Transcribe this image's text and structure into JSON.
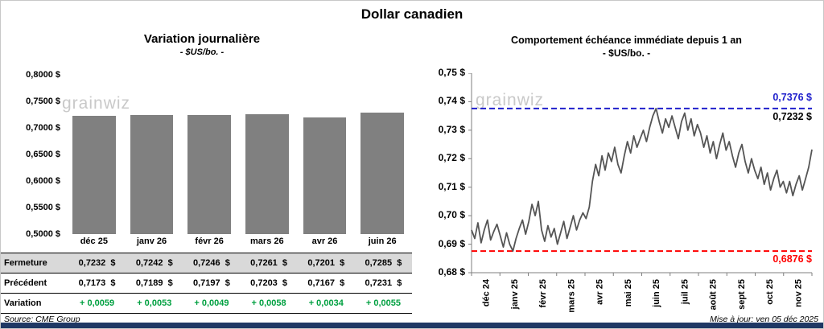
{
  "page_title": "Dollar canadien",
  "watermark": "grainwiz",
  "footer": {
    "source": "Source: CME Group",
    "updated": "Mise à jour: ven 05 déc 2025"
  },
  "colors": {
    "bar": "#808080",
    "line": "#555555",
    "resistance_blue": "#2020cc",
    "support_red": "#ff0000",
    "variation_green": "#00a040",
    "table_header_bg": "#d9d9d9",
    "footer_bar": "#1f3864",
    "axis": "#7f7f7f"
  },
  "chart_data": [
    {
      "type": "bar",
      "title": "Variation journalière",
      "subtitle": "- $US/bo. -",
      "categories": [
        "déc 25",
        "janv 26",
        "févr 26",
        "mars 26",
        "avr 26",
        "juin 26"
      ],
      "values": [
        0.7232,
        0.7242,
        0.7246,
        0.7261,
        0.7201,
        0.7285
      ],
      "ylim": [
        0.5,
        0.8
      ],
      "ytick_labels": [
        "0,8000 $",
        "0,7500 $",
        "0,7000 $",
        "0,6500 $",
        "0,6000 $",
        "0,5500 $",
        "0,5000 $"
      ],
      "grid": false,
      "bar_color": "#808080",
      "table": {
        "rows": [
          {
            "label": "Fermeture",
            "values": [
              "0,7232  $",
              "0,7242  $",
              "0,7246  $",
              "0,7261  $",
              "0,7201  $",
              "0,7285  $"
            ],
            "bg": "#d9d9d9",
            "color": "#000000"
          },
          {
            "label": "Précédent",
            "values": [
              "0,7173  $",
              "0,7189  $",
              "0,7197  $",
              "0,7203  $",
              "0,7167  $",
              "0,7231  $"
            ],
            "bg": "#ffffff",
            "color": "#000000"
          },
          {
            "label": "Variation",
            "values": [
              "+ 0,0059",
              "+ 0,0053",
              "+ 0,0049",
              "+ 0,0058",
              "+ 0,0034",
              "+ 0,0055"
            ],
            "bg": "#ffffff",
            "color": "#00a040"
          }
        ]
      }
    },
    {
      "type": "line",
      "title": "Comportement échéance immédiate depuis 1 an",
      "subtitle": "- $US/bo. -",
      "x_tick_labels": [
        "déc 24",
        "janv 25",
        "févr 25",
        "mars 25",
        "avr 25",
        "mai 25",
        "juin 25",
        "juil 25",
        "août 25",
        "sept 25",
        "oct 25",
        "nov 25"
      ],
      "ylim": [
        0.68,
        0.75
      ],
      "ytick_labels": [
        "0,75 $",
        "0,74 $",
        "0,73 $",
        "0,72 $",
        "0,71 $",
        "0,70 $",
        "0,69 $",
        "0,68 $"
      ],
      "grid": false,
      "line_color": "#555555",
      "annotations": {
        "high": {
          "value": 0.7376,
          "label": "0,7376 $",
          "color": "#2020cc",
          "style": "dashed"
        },
        "current": {
          "value": 0.7232,
          "label": "0,7232 $",
          "color": "#000000"
        },
        "low": {
          "value": 0.6876,
          "label": "0,6876 $",
          "color": "#ff0000",
          "style": "dashed"
        }
      },
      "values": [
        0.695,
        0.692,
        0.6975,
        0.6905,
        0.695,
        0.6985,
        0.6915,
        0.6945,
        0.697,
        0.693,
        0.689,
        0.694,
        0.69,
        0.6876,
        0.692,
        0.6955,
        0.6985,
        0.6935,
        0.698,
        0.704,
        0.7,
        0.705,
        0.695,
        0.691,
        0.6965,
        0.6925,
        0.6955,
        0.69,
        0.694,
        0.698,
        0.692,
        0.696,
        0.7,
        0.695,
        0.6985,
        0.701,
        0.699,
        0.703,
        0.712,
        0.718,
        0.714,
        0.721,
        0.716,
        0.722,
        0.719,
        0.724,
        0.718,
        0.715,
        0.721,
        0.726,
        0.722,
        0.728,
        0.724,
        0.727,
        0.73,
        0.726,
        0.731,
        0.735,
        0.7376,
        0.733,
        0.729,
        0.734,
        0.731,
        0.735,
        0.731,
        0.727,
        0.733,
        0.736,
        0.73,
        0.734,
        0.728,
        0.732,
        0.729,
        0.724,
        0.728,
        0.722,
        0.726,
        0.72,
        0.725,
        0.729,
        0.723,
        0.726,
        0.721,
        0.717,
        0.722,
        0.725,
        0.719,
        0.715,
        0.72,
        0.716,
        0.713,
        0.717,
        0.711,
        0.715,
        0.709,
        0.713,
        0.716,
        0.71,
        0.712,
        0.708,
        0.712,
        0.707,
        0.711,
        0.714,
        0.709,
        0.713,
        0.717,
        0.7232
      ]
    }
  ]
}
